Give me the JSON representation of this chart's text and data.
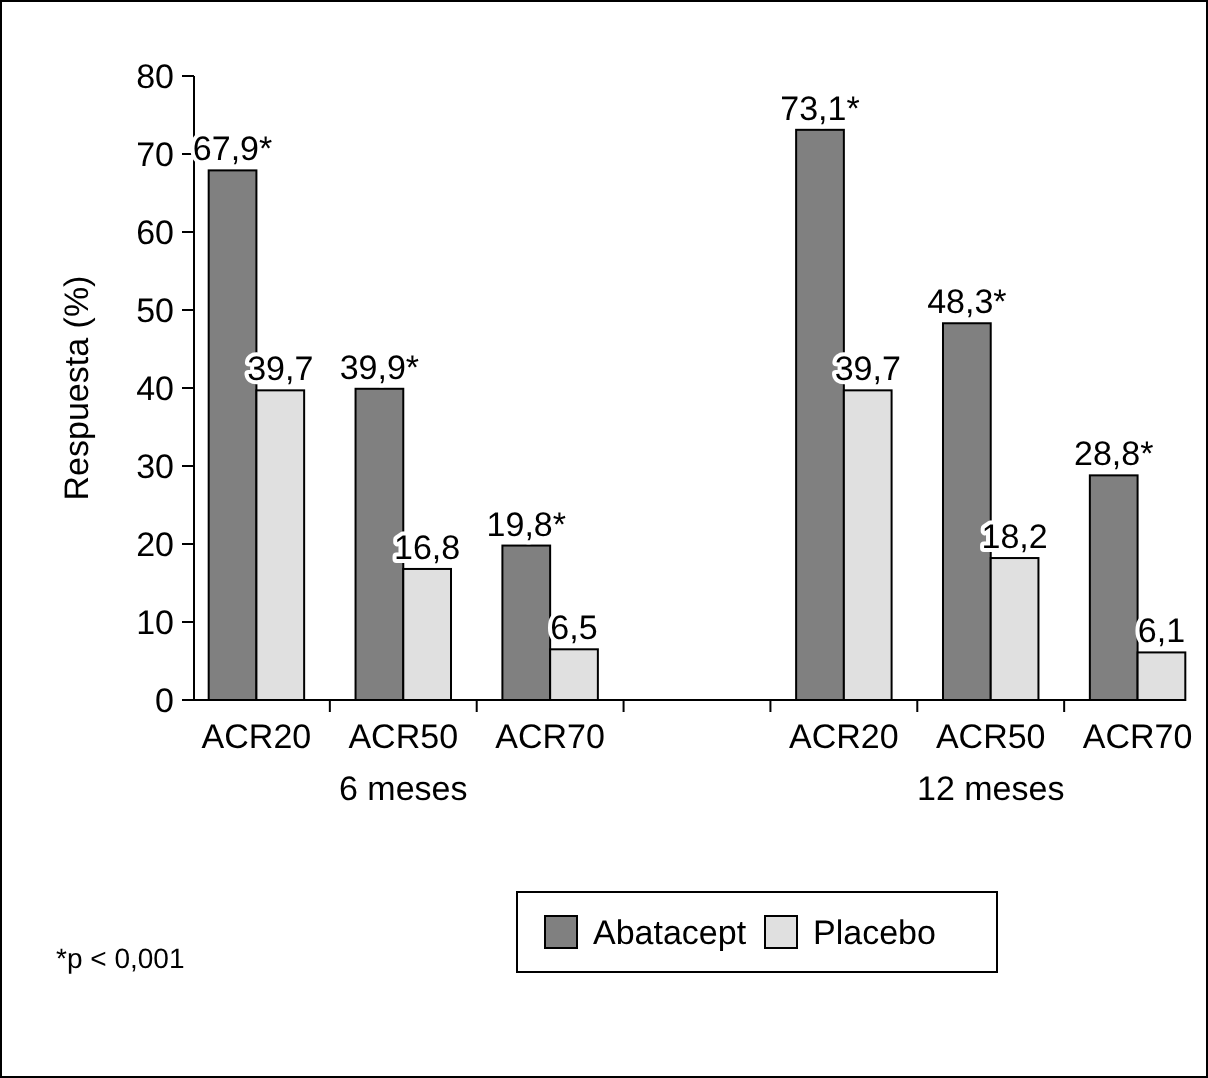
{
  "chart_data": {
    "type": "bar",
    "ylabel": "Respuesta (%)",
    "categories": [
      "ACR20",
      "ACR50",
      "ACR70",
      null,
      "ACR20",
      "ACR50",
      "ACR70"
    ],
    "series": [
      {
        "name": "Abatacept",
        "color": "#808080",
        "values": [
          67.9,
          39.9,
          19.8,
          null,
          73.1,
          48.3,
          28.8
        ],
        "value_labels": [
          "67,9*",
          "39,9*",
          "19,8*",
          null,
          "73,1*",
          "48,3*",
          "28,8*"
        ]
      },
      {
        "name": "Placebo",
        "color": "#e0e0e0",
        "values": [
          39.7,
          16.8,
          6.5,
          null,
          39.7,
          18.2,
          6.1
        ],
        "value_labels": [
          "39,7",
          "16,8",
          "6,5",
          null,
          "39,7",
          "18,2",
          "6,1"
        ]
      }
    ],
    "ylim": [
      0,
      80
    ],
    "yticks": [
      0,
      10,
      20,
      30,
      40,
      50,
      60,
      70,
      80
    ],
    "grid": false,
    "legend": "bottom",
    "annotations": [
      "6 meses",
      "12 meses",
      "*p < 0,001"
    ]
  }
}
